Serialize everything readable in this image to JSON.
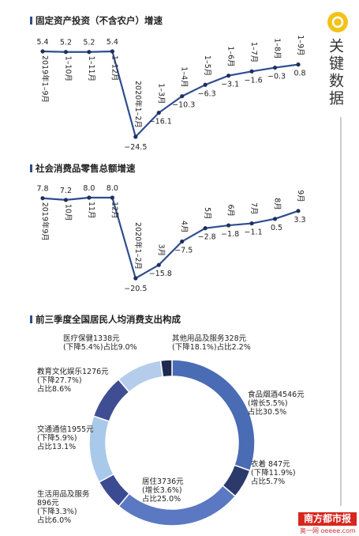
{
  "sidebar": {
    "label": "关键数据"
  },
  "footer": {
    "brand": "南方都市报",
    "site": "奥一网 oeeee.com"
  },
  "chart_data": [
    {
      "type": "line",
      "title": "固定资产投资（不含农户）增速",
      "color": "#2e4d8f",
      "categories": [
        "2019年1–9月",
        "1–10月",
        "1–11月",
        "1–12月",
        "2020年1–2月",
        "1–3月",
        "1–4月",
        "1–5月",
        "1–6月",
        "1–7月",
        "1–8月",
        "1–9月"
      ],
      "values": [
        5.4,
        5.2,
        5.2,
        5.4,
        -24.5,
        -16.1,
        -10.3,
        -6.3,
        -3.1,
        -1.6,
        -0.3,
        0.8
      ],
      "value_labels": [
        "5.4",
        "5.2",
        "5.2",
        "5.4",
        "−24.5",
        "−16.1",
        "−10.3",
        "−6.3",
        "−3.1",
        "−1.6",
        "−0.3",
        "0.8"
      ]
    },
    {
      "type": "line",
      "title": "社会消费品零售总额增速",
      "color": "#2e4d8f",
      "categories": [
        "2019年9月",
        "10月",
        "11月",
        "12月",
        "2020年1–2月",
        "3月",
        "4月",
        "5月",
        "6月",
        "7月",
        "8月",
        "9月"
      ],
      "values": [
        7.8,
        7.2,
        8.0,
        8.0,
        -20.5,
        -15.8,
        -7.5,
        -2.8,
        -1.8,
        -1.1,
        0.5,
        3.3
      ],
      "value_labels": [
        "7.8",
        "7.2",
        "8.0",
        "8.0",
        "−20.5",
        "−15.8",
        "−7.5",
        "−2.8",
        "−1.8",
        "−1.1",
        "0.5",
        "3.3"
      ]
    },
    {
      "type": "donut",
      "title": "前三季度全国居民人均消费支出构成",
      "labels": [
        [
          "食品烟酒4546元",
          "(增长5.5%)"
        ],
        [
          "衣着  847元",
          "(下降11.9%)"
        ],
        [
          "居住3736元",
          "(增长3.6%)"
        ],
        [
          "生活用品及服务",
          "896元",
          "(下降3.3%)"
        ],
        [
          "交通通信1955元",
          "(下降5.9%)"
        ],
        [
          "教育文化娱乐1276元",
          "(下降27.7%)"
        ],
        [
          "医疗保健1338元",
          "(下降5.4%)"
        ],
        [
          "其他用品及服务328元",
          "(下降18.1%)"
        ]
      ],
      "values": [
        30.5,
        5.7,
        25.0,
        6.0,
        13.1,
        8.6,
        9.0,
        2.2
      ],
      "value_labels": [
        "占比30.5%",
        "占比5.7%",
        "占比25.0%",
        "占比6.0%",
        "占比13.1%",
        "占比8.6%",
        "占比9.0%",
        "占比2.2%"
      ],
      "colors": [
        "#4a6cb5",
        "#2b3a6b",
        "#5b78c2",
        "#3b4b91",
        "#a9c9ea",
        "#3f4d92",
        "#b5cdea",
        "#1f2a50"
      ]
    }
  ]
}
